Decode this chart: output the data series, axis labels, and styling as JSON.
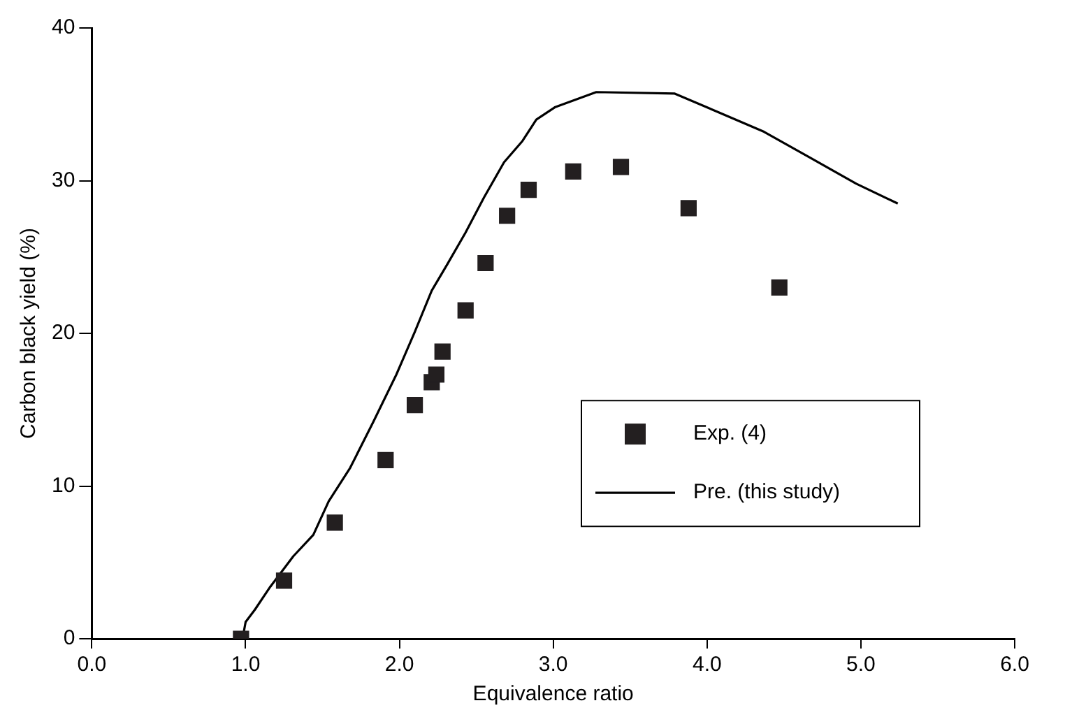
{
  "chart_data": {
    "type": "scatter",
    "xlabel": "Equivalence ratio",
    "ylabel": "Carbon black yield (%)",
    "xlim": [
      0,
      6
    ],
    "xticks": [
      {
        "value": 0,
        "label": "0.0"
      },
      {
        "value": 1,
        "label": "1.0"
      },
      {
        "value": 2,
        "label": "2.0"
      },
      {
        "value": 3,
        "label": "3.0"
      },
      {
        "value": 4,
        "label": "4.0"
      },
      {
        "value": 5,
        "label": "5.0"
      },
      {
        "value": 6,
        "label": "6.0"
      }
    ],
    "ylim": [
      0,
      40
    ],
    "yticks": [
      0,
      10,
      20,
      30,
      40
    ],
    "grid": false,
    "legend": "right",
    "series": [
      {
        "name": "Exp. (4)",
        "marker": "square",
        "color": "#231f20",
        "x": [
          0.97,
          1.25,
          1.58,
          1.91,
          2.1,
          2.21,
          2.24,
          2.28,
          2.43,
          2.56,
          2.7,
          2.84,
          3.13,
          3.44,
          3.88,
          4.47
        ],
        "values": [
          0,
          3.8,
          7.6,
          11.7,
          15.3,
          16.8,
          17.3,
          18.8,
          21.5,
          24.6,
          27.7,
          29.4,
          30.6,
          30.9,
          28.2,
          23.0
        ]
      },
      {
        "name": "Pre. (this study)",
        "type": "line",
        "marker": "none",
        "line_style": "solid",
        "color": "#000000",
        "x": [
          0.98,
          1.0,
          1.06,
          1.16,
          1.31,
          1.44,
          1.54,
          1.68,
          1.83,
          1.98,
          2.1,
          2.21,
          2.31,
          2.43,
          2.55,
          2.68,
          2.8,
          2.89,
          3.01,
          3.28,
          3.79,
          4.07,
          4.37,
          4.67,
          4.97,
          5.24
        ],
        "values": [
          0,
          1.1,
          1.9,
          3.4,
          5.4,
          6.8,
          9.0,
          11.2,
          14.2,
          17.3,
          20.1,
          22.8,
          24.5,
          26.6,
          28.9,
          31.2,
          32.6,
          34.0,
          34.8,
          35.8,
          35.7,
          34.5,
          33.2,
          31.5,
          29.8,
          28.5
        ]
      }
    ]
  }
}
